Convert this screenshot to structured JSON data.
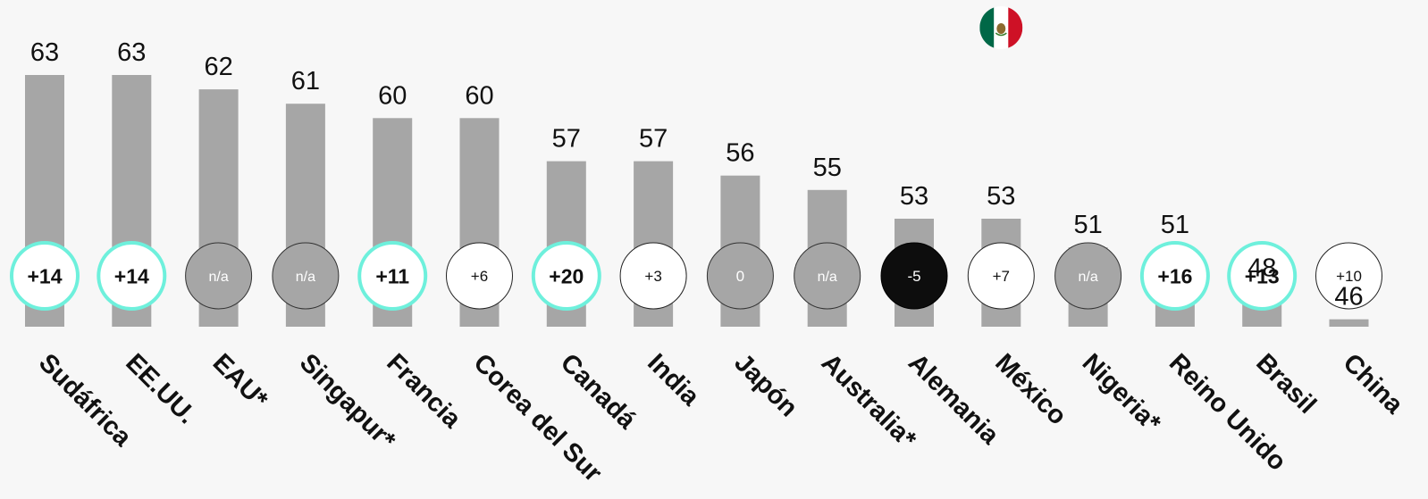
{
  "chart_data": {
    "type": "bar",
    "categories": [
      "Sudáfrica",
      "EE.UU.",
      "EAU*",
      "Singapur*",
      "Francia",
      "Corea del Sur",
      "Canadá",
      "India",
      "Japón",
      "Australia*",
      "Alemania",
      "México",
      "Nigeria*",
      "Reino Unido",
      "Brasil",
      "China"
    ],
    "values": [
      63,
      63,
      62,
      61,
      60,
      60,
      57,
      57,
      56,
      55,
      53,
      53,
      51,
      51,
      48,
      46
    ],
    "value_labels": [
      "63",
      "63",
      "62",
      "61",
      "60",
      "60",
      "57",
      "57",
      "56",
      "55",
      "53",
      "53",
      "51",
      "51",
      "48",
      "46"
    ],
    "changes": [
      "+14",
      "+14",
      "n/a",
      "n/a",
      "+11",
      "+6",
      "+20",
      "+3",
      "0",
      "n/a",
      "-5",
      "+7",
      "n/a",
      "+16",
      "+13",
      "+10"
    ],
    "change_styles": [
      "highlight",
      "highlight",
      "na",
      "na",
      "highlight",
      "plain",
      "highlight",
      "plain",
      "neutral",
      "na",
      "negative",
      "plain",
      "na",
      "highlight",
      "highlight",
      "plain"
    ],
    "highlighted_category": "México",
    "colors": {
      "bar": "#a6a6a6",
      "background": "#f7f7f7",
      "highlight_ring": "#6ef0dc",
      "na_fill": "#a6a6a6",
      "negative_fill": "#0d0d0d"
    },
    "grid": false,
    "legend": "none"
  }
}
